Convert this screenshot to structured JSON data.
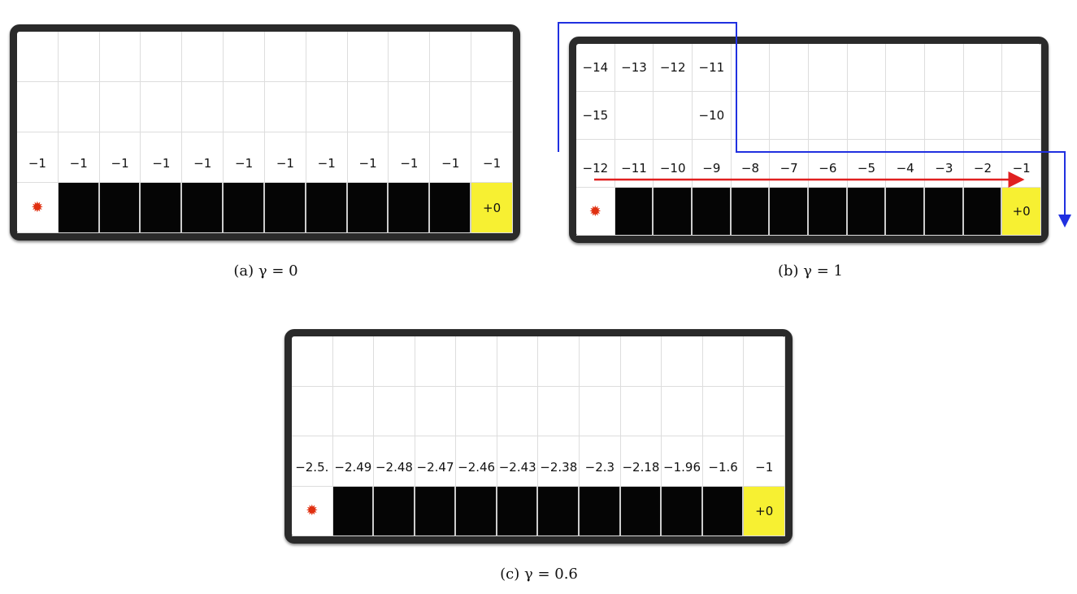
{
  "start_icon": "turtle-icon",
  "colors": {
    "cliff": "#050505",
    "goal": "#f7f032",
    "agent": "#e03010",
    "path_optimal": "#e02020",
    "path_safe": "#2030e0"
  },
  "panels": [
    {
      "caption": "(a) γ = 0",
      "rows": [
        [
          "",
          "",
          "",
          "",
          "",
          "",
          "",
          "",
          "",
          "",
          "",
          ""
        ],
        [
          "",
          "",
          "",
          "",
          "",
          "",
          "",
          "",
          "",
          "",
          "",
          ""
        ],
        [
          "−1",
          "−1",
          "−1",
          "−1",
          "−1",
          "−1",
          "−1",
          "−1",
          "−1",
          "−1",
          "−1",
          "−1"
        ]
      ],
      "goal_label": "+0"
    },
    {
      "caption": "(b) γ = 1",
      "rows": [
        [
          "−14",
          "−13",
          "−12",
          "−11",
          "",
          "",
          "",
          "",
          "",
          "",
          "",
          ""
        ],
        [
          "−15",
          "",
          "",
          "−10",
          "",
          "",
          "",
          "",
          "",
          "",
          "",
          ""
        ],
        [
          "−12",
          "−11",
          "−10",
          "−9",
          "−8",
          "−7",
          "−6",
          "−5",
          "−4",
          "−3",
          "−2",
          "−1"
        ]
      ],
      "goal_label": "+0"
    },
    {
      "caption": "(c) γ = 0.6",
      "rows": [
        [
          "",
          "",
          "",
          "",
          "",
          "",
          "",
          "",
          "",
          "",
          "",
          ""
        ],
        [
          "",
          "",
          "",
          "",
          "",
          "",
          "",
          "",
          "",
          "",
          "",
          ""
        ],
        [
          "−2.5.",
          "−2.49",
          "−2.48",
          "−2.47",
          "−2.46",
          "−2.43",
          "−2.38",
          "−2.3",
          "−2.18",
          "−1.96",
          "−1.6",
          "−1"
        ]
      ],
      "goal_label": "+0"
    }
  ]
}
